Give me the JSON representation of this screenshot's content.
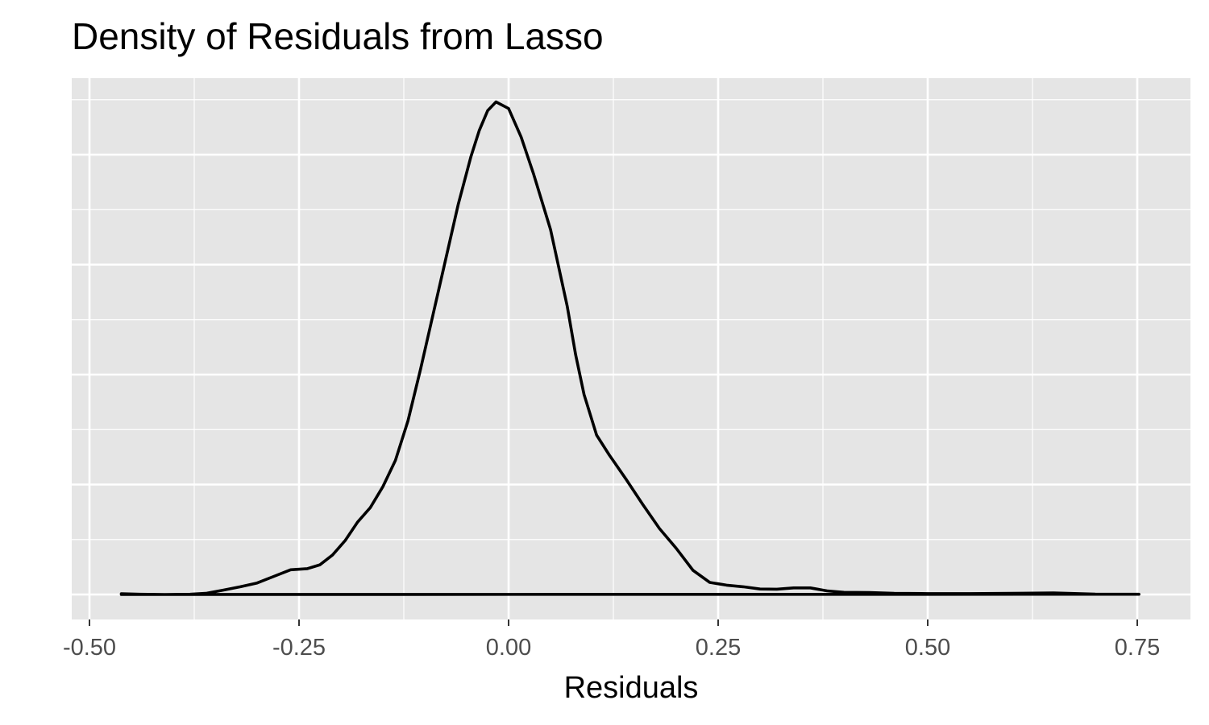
{
  "chart_data": {
    "type": "line",
    "title": "Density of Residuals from Lasso",
    "xlabel": "Residuals",
    "ylabel": "",
    "xlim": [
      -0.5,
      0.75
    ],
    "x_ticks": [
      -0.5,
      -0.25,
      0.0,
      0.25,
      0.5,
      0.75
    ],
    "x_tick_labels": [
      "-0.50",
      "-0.25",
      "0.00",
      "0.25",
      "0.50",
      "0.75"
    ],
    "y_tick_labels": [],
    "grid": true,
    "background": "#e5e5e5",
    "grid_color": "#ffffff",
    "line_color": "#000000",
    "series": [
      {
        "x": [
          -0.462,
          -0.44,
          -0.41,
          -0.38,
          -0.36,
          -0.34,
          -0.32,
          -0.3,
          -0.28,
          -0.26,
          -0.24,
          -0.225,
          -0.21,
          -0.195,
          -0.18,
          -0.165,
          -0.15,
          -0.135,
          -0.12,
          -0.105,
          -0.09,
          -0.075,
          -0.06,
          -0.045,
          -0.035,
          -0.025,
          -0.015,
          0.0,
          0.015,
          0.03,
          0.05,
          0.07,
          0.08,
          0.09,
          0.105,
          0.12,
          0.14,
          0.16,
          0.18,
          0.2,
          0.22,
          0.24,
          0.26,
          0.28,
          0.3,
          0.32,
          0.34,
          0.36,
          0.38,
          0.4,
          0.43,
          0.46,
          0.5,
          0.55,
          0.6,
          0.65,
          0.7,
          0.752
        ],
        "y": [
          0.007,
          0.002,
          0.0,
          0.002,
          0.012,
          0.04,
          0.07,
          0.105,
          0.165,
          0.225,
          0.235,
          0.27,
          0.36,
          0.49,
          0.66,
          0.79,
          0.98,
          1.22,
          1.58,
          2.05,
          2.55,
          3.05,
          3.55,
          3.98,
          4.22,
          4.4,
          4.48,
          4.42,
          4.16,
          3.82,
          3.32,
          2.62,
          2.18,
          1.82,
          1.45,
          1.27,
          1.05,
          0.82,
          0.6,
          0.42,
          0.22,
          0.11,
          0.085,
          0.07,
          0.05,
          0.048,
          0.06,
          0.06,
          0.033,
          0.02,
          0.018,
          0.01,
          0.008,
          0.008,
          0.01,
          0.015,
          0.004,
          0.002
        ]
      }
    ]
  }
}
